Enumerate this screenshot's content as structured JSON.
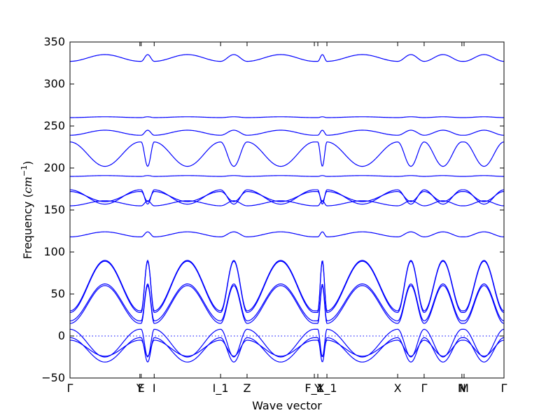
{
  "chart_data": {
    "type": "line",
    "title": "",
    "xlabel": "Wave vector",
    "ylabel_text": "Frequency (",
    "ylabel_unit": "cm",
    "ylabel_exp": "−1",
    "ylabel_close": ")",
    "ylim": [
      -50,
      350
    ],
    "yticks": [
      -50,
      0,
      50,
      100,
      150,
      200,
      250,
      300,
      350
    ],
    "xlim": [
      0,
      1
    ],
    "grid": false,
    "line_color": "#0000ff",
    "zero_line_color": "#0000ff",
    "kpoints": [
      {
        "label": "Γ",
        "x": 0.0
      },
      {
        "label": "Y",
        "x": 0.161
      },
      {
        "label": "E",
        "x": 0.164
      },
      {
        "label": "I",
        "x": 0.194
      },
      {
        "label": "I_1",
        "x": 0.347
      },
      {
        "label": "Z",
        "x": 0.408
      },
      {
        "label": "F_1",
        "x": 0.563
      },
      {
        "label": "Y",
        "x": 0.571
      },
      {
        "label": "X_1",
        "x": 0.592
      },
      {
        "label": "X",
        "x": 0.755
      },
      {
        "label": "Γ",
        "x": 0.816
      },
      {
        "label": "N",
        "x": 0.903
      },
      {
        "label": "M",
        "x": 0.908
      },
      {
        "label": "Γ",
        "x": 1.0
      }
    ],
    "flat_bands": [
      {
        "name": "band-1",
        "base": 327,
        "peak": 335,
        "shape": "bump"
      },
      {
        "name": "band-2",
        "base": 260,
        "peak": 261,
        "shape": "flat"
      },
      {
        "name": "band-3",
        "base": 239,
        "peak": 245,
        "shape": "bump"
      },
      {
        "name": "band-4",
        "base": 231,
        "peak": 202,
        "shape": "dip"
      },
      {
        "name": "band-5",
        "base": 190,
        "peak": 191,
        "shape": "flat"
      },
      {
        "name": "band-6",
        "base": 174,
        "peak": 157,
        "shape": "dip"
      },
      {
        "name": "band-7",
        "base": 172,
        "peak": 160,
        "shape": "dip"
      },
      {
        "name": "band-8",
        "base": 155,
        "peak": 161,
        "shape": "bump"
      },
      {
        "name": "band-9",
        "base": 118,
        "peak": 124,
        "shape": "bump"
      }
    ],
    "acoustic_bands": [
      {
        "name": "acoustic-1",
        "base": 30,
        "peak": 90
      },
      {
        "name": "acoustic-2",
        "base": 28,
        "peak": 89
      },
      {
        "name": "acoustic-3",
        "base": 18,
        "peak": 62
      },
      {
        "name": "acoustic-4",
        "base": 15,
        "peak": 60
      },
      {
        "name": "acoustic-5",
        "base": 8,
        "peak": -25
      },
      {
        "name": "acoustic-6",
        "base": -2,
        "peak": -31
      },
      {
        "name": "acoustic-7",
        "base": -5,
        "peak": -24
      }
    ]
  }
}
